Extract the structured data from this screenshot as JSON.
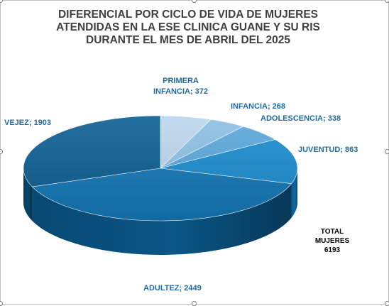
{
  "chart_data": {
    "type": "pie",
    "title": "DIFERENCIAL POR CICLO DE VIDA DE MUJERES\nATENDIDAS EN LA ESE CLINICA GUANE Y SU RIS\nDURANTE EL MES DE ABRIL DEL 2025",
    "categories": [
      "PRIMERA INFANCIA",
      "INFANCIA",
      "ADOLESCENCIA",
      "JUVENTUD",
      "ADULTEZ",
      "VEJEZ"
    ],
    "values": [
      372,
      268,
      338,
      863,
      2449,
      1903
    ],
    "labels": [
      "PRIMERA\nINFANCIA; 372",
      "INFANCIA; 268",
      "ADOLESCENCIA; 338",
      "JUVENTUD; 863",
      "ADULTEZ; 2449",
      "VEJEZ; 1903"
    ],
    "colors": [
      "#bcd7ee",
      "#8cc0e4",
      "#5ba9dc",
      "#1b8cce",
      "#1376b4",
      "#0c5f93"
    ],
    "side_colors": [
      "#8fb4d2",
      "#6598bf",
      "#3b82b7",
      "#0f6aa3",
      "#0a5687",
      "#08476f"
    ],
    "total_label": "TOTAL MUJERES",
    "total_value": "6193",
    "legend": "none",
    "view": "3d"
  }
}
